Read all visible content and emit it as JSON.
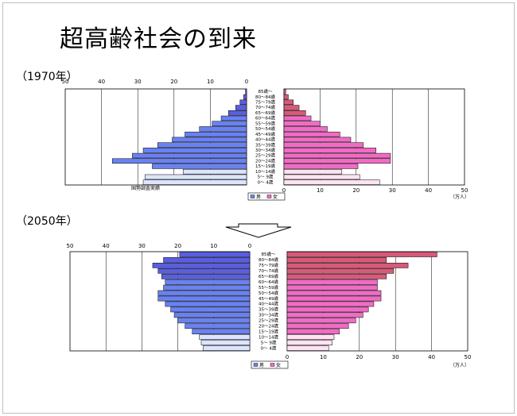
{
  "slide": {
    "title": "超高齢社会の到来"
  },
  "chart_data": [
    {
      "type": "bar",
      "year_label": "（1970年）",
      "source_note": "国勢調査実績",
      "unit_label": "（万人）",
      "legend": {
        "male": "男",
        "female": "女"
      },
      "x_ticks": [
        "50",
        "40",
        "30",
        "20",
        "10",
        "0",
        "0",
        "10",
        "20",
        "30",
        "40",
        "50"
      ],
      "xlim": [
        0,
        50
      ],
      "categories": [
        "0～ 4歳",
        "5～ 9歳",
        "10～14歳",
        "15～19歳",
        "20～24歳",
        "25～29歳",
        "30～34歳",
        "35～39歳",
        "40～44歳",
        "45～49歳",
        "50～54歳",
        "55～59歳",
        "60～64歳",
        "65～69歳",
        "70～74歳",
        "75～79歳",
        "80～84歳",
        "85歳～"
      ],
      "series": [
        {
          "name": "男",
          "values": [
            28.5,
            28,
            17.5,
            26,
            37,
            31.5,
            28.5,
            24.5,
            20.5,
            17,
            13,
            9.5,
            7,
            5,
            3,
            1.8,
            0.8,
            0.3
          ]
        },
        {
          "name": "女",
          "values": [
            26.5,
            21,
            16,
            20.5,
            29.5,
            29.5,
            25.5,
            22,
            18.5,
            15.5,
            12,
            10,
            7.5,
            6,
            4.2,
            2.6,
            1.2,
            0.5
          ]
        }
      ],
      "colors": {
        "male_young": "#dde4ff",
        "male": "#6a82f0",
        "female_young": "#ffe3f2",
        "female": "#f06cc4",
        "male_old": "#5a5ee0",
        "female_old": "#d85a78"
      }
    },
    {
      "type": "bar",
      "year_label": "（2050年）",
      "unit_label": "（万人）",
      "legend": {
        "male": "男",
        "female": "女"
      },
      "x_ticks": [
        "50",
        "40",
        "30",
        "20",
        "10",
        "0",
        "0",
        "10",
        "20",
        "30",
        "40",
        "50"
      ],
      "xlim": [
        0,
        50
      ],
      "categories": [
        "0～ 4歳",
        "5～ 9歳",
        "10～14歳",
        "15～19歳",
        "20～24歳",
        "25～29歳",
        "30～34歳",
        "35～39歳",
        "40～44歳",
        "45～49歳",
        "50～54歳",
        "55～59歳",
        "60～64歳",
        "65～69歳",
        "70～74歳",
        "75～79歳",
        "80～84歳",
        "85歳～"
      ],
      "series": [
        {
          "name": "男",
          "values": [
            13,
            13.5,
            14,
            16,
            18,
            20,
            21,
            22,
            23.5,
            25.5,
            25.5,
            24,
            23.5,
            24.5,
            25.5,
            27,
            24,
            19.5
          ]
        },
        {
          "name": "女",
          "values": [
            11.5,
            12.5,
            13,
            14.5,
            17,
            19,
            21,
            22.5,
            24,
            26,
            26,
            25,
            25,
            27.5,
            29.5,
            33.5,
            27.5,
            41.5
          ]
        }
      ],
      "colors": {
        "male_young": "#dde4ff",
        "male": "#6a82f0",
        "female_young": "#ffe3f2",
        "female": "#f06cc4",
        "male_old": "#5a5ee0",
        "female_old": "#d85a78"
      }
    }
  ]
}
